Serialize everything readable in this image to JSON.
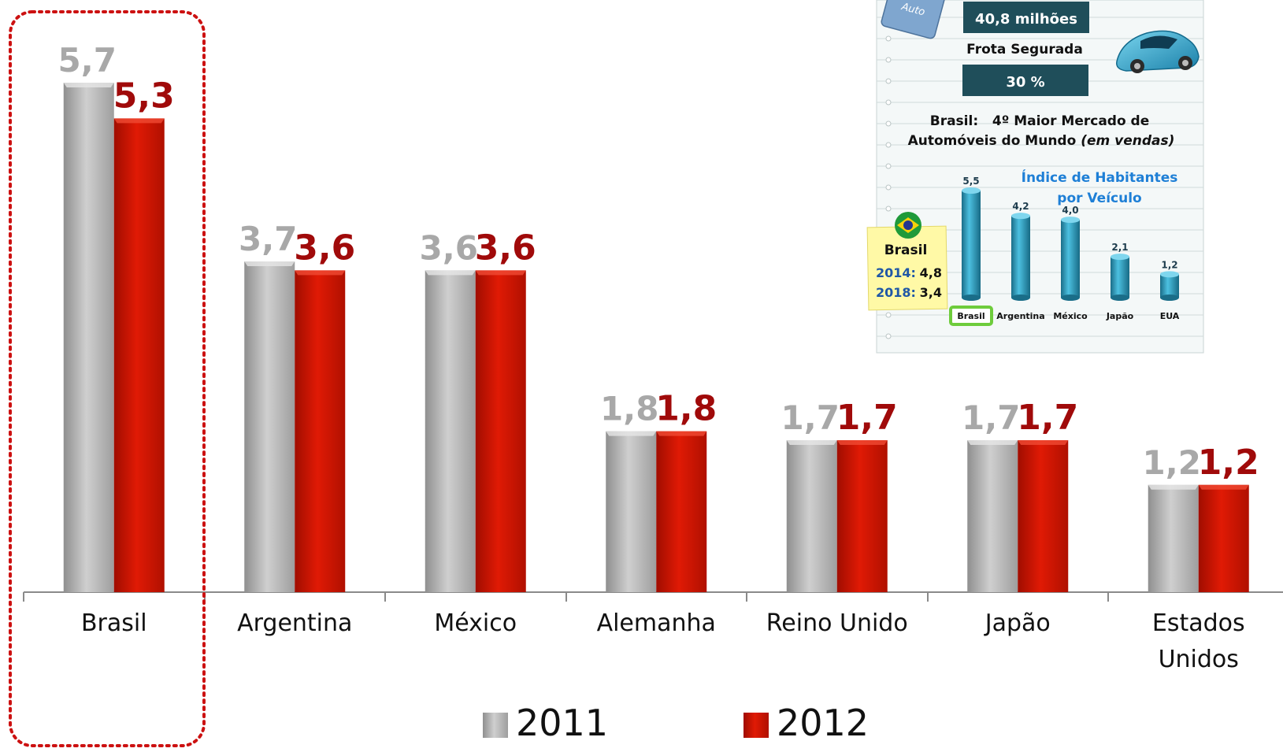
{
  "chart_data": [
    {
      "type": "bar",
      "categories": [
        "Brasil",
        "Argentina",
        "México",
        "Alemanha",
        "Reino Unido",
        "Japão",
        "Estados Unidos"
      ],
      "category_lines": [
        [
          "Brasil"
        ],
        [
          "Argentina"
        ],
        [
          "México"
        ],
        [
          "Alemanha"
        ],
        [
          "Reino Unido"
        ],
        [
          "Japão"
        ],
        [
          "Estados",
          "Unidos"
        ]
      ],
      "series": [
        {
          "name": "2011",
          "values": [
            5.7,
            3.7,
            3.6,
            1.8,
            1.7,
            1.7,
            1.2
          ],
          "labels": [
            "5,7",
            "3,7",
            "3,6",
            "1,8",
            "1,7",
            "1,7",
            "1,2"
          ],
          "color": "#b3b3b3",
          "label_color": "#a8a8a8"
        },
        {
          "name": "2012",
          "values": [
            5.3,
            3.6,
            3.6,
            1.8,
            1.7,
            1.7,
            1.2
          ],
          "labels": [
            "5,3",
            "3,6",
            "3,6",
            "1,8",
            "1,7",
            "1,7",
            "1,2"
          ],
          "color": "#cc1100",
          "label_color": "#a00a0a"
        }
      ],
      "ylim": [
        0,
        6.2
      ],
      "legend_position": "bottom-center",
      "highlight_category": "Brasil",
      "highlight_color": "#cc1111"
    },
    {
      "type": "bar",
      "title_lines": [
        "Índice de Habitantes",
        "por Veículo"
      ],
      "categories": [
        "Brasil",
        "Argentina",
        "México",
        "Japão",
        "EUA"
      ],
      "values": [
        5.5,
        4.2,
        4.0,
        2.1,
        1.2
      ],
      "labels": [
        "5,5",
        "4,2",
        "4,0",
        "2,1",
        "1,2"
      ],
      "ylim": [
        0,
        6
      ],
      "bar_color": "#2a9fc4",
      "title_color": "#1e7fd6",
      "highlight_category": "Brasil",
      "highlight_color": "#6ecc3c"
    }
  ],
  "inset": {
    "auto_tag": "Auto",
    "fleet_value": "40,8 milhões",
    "fleet_label": "Frota Segurada",
    "percent": "30 %",
    "market_line1": "Brasil:   4º Maior Mercado de",
    "market_line2": "Automóveis do Mundo",
    "market_italic": "(em vendas)",
    "note": {
      "title": "Brasil",
      "rows": [
        {
          "year": "2014:",
          "value": "4,8"
        },
        {
          "year": "2018:",
          "value": "3,4"
        }
      ]
    }
  },
  "colors": {
    "inset_box": "#1f4e5a",
    "note_bg": "#fff9a6",
    "note_year": "#1f57a6"
  }
}
